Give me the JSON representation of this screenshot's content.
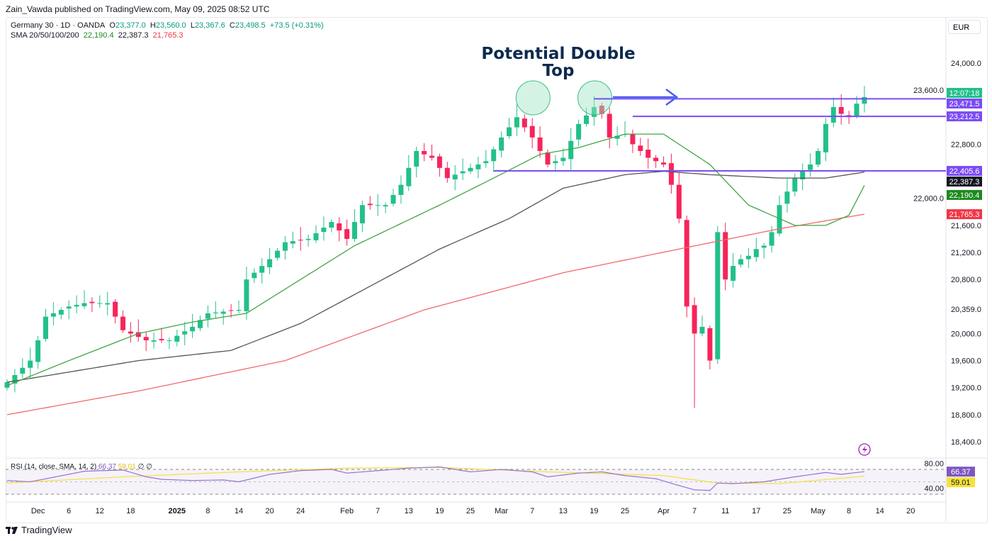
{
  "header": {
    "published": "Zain_Vawda published on TradingView.com, May 09, 2025 08:52 UTC"
  },
  "legend": {
    "symbol": "Germany 30 · 1D · OANDA",
    "o_label": "O",
    "o": "23,377.0",
    "h_label": "H",
    "h": "23,560.0",
    "l_label": "L",
    "l": "23,367.6",
    "c_label": "C",
    "c": "23,498.5",
    "change": "+73.5 (+0.31%)",
    "sma_label": "SMA 20/50/100/200",
    "sma20": "22,190.4",
    "sma50": "22,387.3",
    "sma200": "21,765.3"
  },
  "rsi_legend": {
    "label": "RSI (14, close, SMA, 14, 2)",
    "rsi": "66.37",
    "sma": "59.01",
    "extra": "∅ ∅"
  },
  "currency": "EUR",
  "footer": {
    "brand": "TradingView"
  },
  "colors": {
    "up": "#22c08a",
    "down": "#f7245a",
    "sma20": "#43a547",
    "sma50": "#555555",
    "sma200": "#f06a6a",
    "level": "#7b4cf5",
    "arrow": "#4a5cf0",
    "circle": "#9fe5c4",
    "rsi": "#9575cd",
    "rsi_sma": "#f5e13b"
  },
  "chart_data": {
    "type": "candlestick",
    "title": "Potential Double Top",
    "ylim": [
      18200,
      24300
    ],
    "y_ticks": [
      "24,000.0",
      "23,600.0",
      "22,800.0",
      "22,000.0",
      "21,600.0",
      "21,200.0",
      "20,800.0",
      "20,359.0",
      "20,000.0",
      "19,600.0",
      "19,200.0",
      "18,800.0",
      "18,400.0"
    ],
    "y_tick_values": [
      24000,
      23600,
      22800,
      22000,
      21600,
      21200,
      20800,
      20359,
      20000,
      19600,
      19200,
      18800,
      18400
    ],
    "x_ticks": [
      {
        "label": "Dec",
        "day": 4
      },
      {
        "label": "6",
        "day": 8
      },
      {
        "label": "12",
        "day": 12
      },
      {
        "label": "18",
        "day": 16
      },
      {
        "label": "2025",
        "day": 22
      },
      {
        "label": "8",
        "day": 26
      },
      {
        "label": "14",
        "day": 30
      },
      {
        "label": "20",
        "day": 34
      },
      {
        "label": "24",
        "day": 38
      },
      {
        "label": "Feb",
        "day": 44
      },
      {
        "label": "7",
        "day": 48
      },
      {
        "label": "13",
        "day": 52
      },
      {
        "label": "19",
        "day": 56
      },
      {
        "label": "25",
        "day": 60
      },
      {
        "label": "Mar",
        "day": 64
      },
      {
        "label": "7",
        "day": 68
      },
      {
        "label": "13",
        "day": 72
      },
      {
        "label": "19",
        "day": 76
      },
      {
        "label": "25",
        "day": 80
      },
      {
        "label": "Apr",
        "day": 85
      },
      {
        "label": "7",
        "day": 89
      },
      {
        "label": "11",
        "day": 93
      },
      {
        "label": "17",
        "day": 97
      },
      {
        "label": "25",
        "day": 101
      },
      {
        "label": "May",
        "day": 105
      },
      {
        "label": "8",
        "day": 109
      },
      {
        "label": "14",
        "day": 113
      },
      {
        "label": "20",
        "day": 117
      }
    ],
    "close_keypoints": [
      [
        0,
        19280
      ],
      [
        3,
        19600
      ],
      [
        4,
        19900
      ],
      [
        5,
        20250
      ],
      [
        8,
        20400
      ],
      [
        10,
        20450
      ],
      [
        13,
        20450
      ],
      [
        15,
        20050
      ],
      [
        18,
        19900
      ],
      [
        21,
        19900
      ],
      [
        24,
        20100
      ],
      [
        26,
        20300
      ],
      [
        30,
        20350
      ],
      [
        31,
        20800
      ],
      [
        34,
        21100
      ],
      [
        36,
        21350
      ],
      [
        39,
        21400
      ],
      [
        42,
        21650
      ],
      [
        44,
        21400
      ],
      [
        46,
        21900
      ],
      [
        49,
        21900
      ],
      [
        51,
        22200
      ],
      [
        53,
        22700
      ],
      [
        55,
        22600
      ],
      [
        57,
        22300
      ],
      [
        59,
        22400
      ],
      [
        62,
        22550
      ],
      [
        64,
        22900
      ],
      [
        66,
        23200
      ],
      [
        68,
        22900
      ],
      [
        70,
        22500
      ],
      [
        72,
        22600
      ],
      [
        74,
        23100
      ],
      [
        76,
        23350
      ],
      [
        77,
        23250
      ],
      [
        78,
        22900
      ],
      [
        80,
        22950
      ],
      [
        81,
        22800
      ],
      [
        83,
        22600
      ],
      [
        85,
        22500
      ],
      [
        86,
        22200
      ],
      [
        87,
        21700
      ],
      [
        88,
        20400
      ],
      [
        89,
        20000
      ],
      [
        90,
        20100
      ],
      [
        91,
        19600
      ],
      [
        92,
        21500
      ],
      [
        93,
        20800
      ],
      [
        94,
        21000
      ],
      [
        95,
        21100
      ],
      [
        96,
        21150
      ],
      [
        97,
        21250
      ],
      [
        98,
        21300
      ],
      [
        99,
        21500
      ],
      [
        100,
        21900
      ],
      [
        101,
        22100
      ],
      [
        102,
        22300
      ],
      [
        103,
        22400
      ],
      [
        104,
        22500
      ],
      [
        105,
        22700
      ],
      [
        106,
        23100
      ],
      [
        107,
        23350
      ],
      [
        108,
        23250
      ],
      [
        109,
        23200
      ],
      [
        110,
        23400
      ],
      [
        111,
        23498.5
      ]
    ],
    "sma20": [
      [
        0,
        19230
      ],
      [
        8,
        19600
      ],
      [
        17,
        20000
      ],
      [
        24,
        20170
      ],
      [
        31,
        20300
      ],
      [
        38,
        20800
      ],
      [
        45,
        21300
      ],
      [
        56,
        21900
      ],
      [
        63,
        22300
      ],
      [
        69,
        22650
      ],
      [
        74,
        22750
      ],
      [
        80,
        22950
      ],
      [
        85,
        22950
      ],
      [
        91,
        22500
      ],
      [
        96,
        21900
      ],
      [
        102,
        21600
      ],
      [
        106,
        21600
      ],
      [
        109,
        21750
      ],
      [
        111,
        22190.4
      ]
    ],
    "sma50": [
      [
        0,
        19280
      ],
      [
        17,
        19600
      ],
      [
        29,
        19750
      ],
      [
        38,
        20150
      ],
      [
        47,
        20700
      ],
      [
        56,
        21250
      ],
      [
        65,
        21700
      ],
      [
        72,
        22150
      ],
      [
        80,
        22350
      ],
      [
        85,
        22400
      ],
      [
        91,
        22350
      ],
      [
        100,
        22300
      ],
      [
        106,
        22300
      ],
      [
        111,
        22387.3
      ]
    ],
    "sma200": [
      [
        0,
        18800
      ],
      [
        17,
        19150
      ],
      [
        36,
        19600
      ],
      [
        54,
        20350
      ],
      [
        72,
        20900
      ],
      [
        87,
        21250
      ],
      [
        100,
        21550
      ],
      [
        111,
        21765.3
      ]
    ],
    "levels": [
      {
        "value": 23471.5,
        "label": "23,471.5",
        "from_day": 76
      },
      {
        "value": 23212.5,
        "label": "23,212.5",
        "from_day": 81
      },
      {
        "value": 22405.6,
        "label": "22,405.6",
        "from_day": 63
      }
    ],
    "price_labels": [
      {
        "label": "12:07:18",
        "value": 23560,
        "color": "#22c08a"
      },
      {
        "label": "22,387.3",
        "value": 22300,
        "color": "#131722"
      },
      {
        "label": "22,190.4",
        "value": 22050,
        "color": "#1e8a1e"
      },
      {
        "label": "21,765.3",
        "value": 21765.3,
        "color": "#f23645"
      }
    ],
    "circles_days": [
      67,
      75
    ],
    "rsi": {
      "ylim": [
        25,
        85
      ],
      "y_ticks": [
        "80.00",
        "40.00"
      ],
      "levels": [
        70,
        30
      ],
      "rsi_keypoints": [
        [
          0,
          52
        ],
        [
          3,
          50
        ],
        [
          10,
          67
        ],
        [
          15,
          69
        ],
        [
          18,
          58
        ],
        [
          20,
          54
        ],
        [
          24,
          52
        ],
        [
          28,
          53
        ],
        [
          30,
          50
        ],
        [
          34,
          62
        ],
        [
          38,
          68
        ],
        [
          42,
          70
        ],
        [
          44,
          64
        ],
        [
          47,
          67
        ],
        [
          52,
          72
        ],
        [
          56,
          74
        ],
        [
          60,
          66
        ],
        [
          64,
          70
        ],
        [
          68,
          66
        ],
        [
          70,
          58
        ],
        [
          74,
          64
        ],
        [
          77,
          66
        ],
        [
          80,
          60
        ],
        [
          84,
          55
        ],
        [
          87,
          44
        ],
        [
          89,
          37
        ],
        [
          91,
          36
        ],
        [
          92,
          48
        ],
        [
          94,
          47
        ],
        [
          98,
          50
        ],
        [
          102,
          58
        ],
        [
          106,
          65
        ],
        [
          108,
          62
        ],
        [
          111,
          66.37
        ]
      ],
      "sma_keypoints": [
        [
          0,
          48
        ],
        [
          15,
          58
        ],
        [
          30,
          66
        ],
        [
          44,
          72
        ],
        [
          56,
          73
        ],
        [
          70,
          66
        ],
        [
          85,
          60
        ],
        [
          92,
          48
        ],
        [
          100,
          47
        ],
        [
          111,
          59.01
        ]
      ],
      "rsi_label": "66.37",
      "sma_label": "59.01"
    }
  }
}
